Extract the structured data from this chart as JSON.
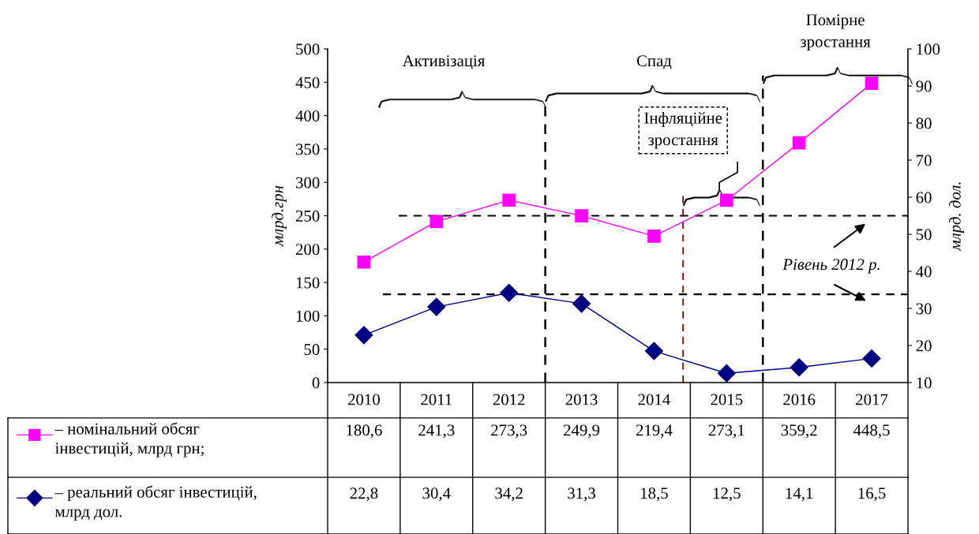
{
  "chart_data": {
    "type": "line",
    "categories": [
      "2010",
      "2011",
      "2012",
      "2013",
      "2014",
      "2015",
      "2016",
      "2017"
    ],
    "series": [
      {
        "name": "– номінальний обсяг\nінвестицій, млрд грн;",
        "color": "#ff00ff",
        "marker": "square",
        "values": [
          180.6,
          241.3,
          273.3,
          249.9,
          219.4,
          273.1,
          359.2,
          448.5
        ],
        "value_labels": [
          "180,6",
          "241,3",
          "273,3",
          "249,9",
          "219,4",
          "273,1",
          "359,2",
          "448,5"
        ]
      },
      {
        "name": "– реальний обсяг інвестицій,\nмлрд дол.",
        "color": "#000080",
        "marker": "diamond",
        "axis": "y2",
        "values": [
          22.8,
          30.4,
          34.2,
          31.3,
          18.5,
          12.5,
          14.1,
          16.5
        ],
        "value_labels": [
          "22,8",
          "30,4",
          "34,2",
          "31,3",
          "18,5",
          "12,5",
          "14,1",
          "16,5"
        ]
      }
    ],
    "ylabel": "млрд.грн",
    "y2label": "млрд. дол.",
    "ylim": [
      0,
      500
    ],
    "yticks": [
      0,
      50,
      100,
      150,
      200,
      250,
      300,
      350,
      400,
      450,
      500
    ],
    "y2lim": [
      10,
      100
    ],
    "y2ticks": [
      10,
      20,
      30,
      40,
      50,
      60,
      70,
      80,
      90,
      100
    ],
    "ref_lines": [
      {
        "axis": "y",
        "value": 250,
        "label": "Рівень 2012 р.",
        "color": "#000000",
        "line_style": "dashed"
      },
      {
        "axis": "y2",
        "value": 33.8,
        "color": "#000000",
        "line_style": "dashed"
      }
    ],
    "annotations": [
      "Активізація",
      "Спад",
      "Помірне\nзростання",
      "Інфляційне\nзростання"
    ],
    "grid": false,
    "legend": "bottom left",
    "line_style": "solid"
  }
}
